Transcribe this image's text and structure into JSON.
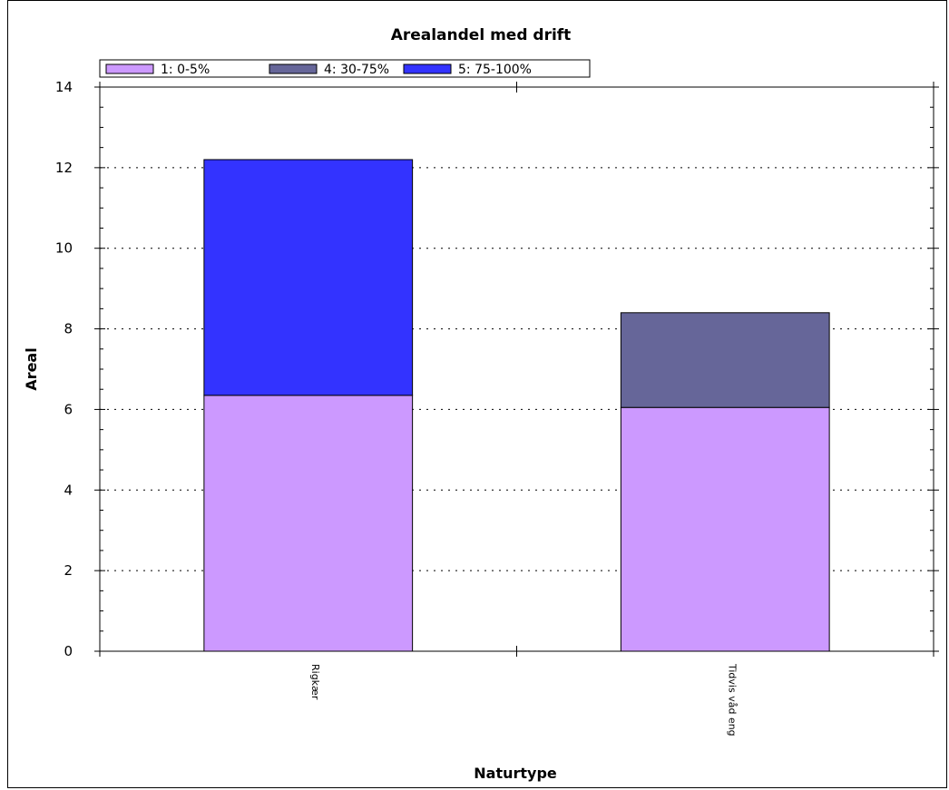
{
  "chart_data": {
    "type": "bar",
    "stacked": true,
    "title": "Arealandel med drift",
    "xlabel": "Naturtype",
    "ylabel": "Areal",
    "categories": [
      "Rigkær",
      "Tidvis våd eng"
    ],
    "series": [
      {
        "name": "1: 0-5%",
        "color": "#cc99ff",
        "values": [
          6.35,
          6.05
        ]
      },
      {
        "name": "4: 30-75%",
        "color": "#666699",
        "values": [
          0,
          2.35
        ]
      },
      {
        "name": "5: 75-100%",
        "color": "#3333ff",
        "values": [
          5.85,
          0
        ]
      }
    ],
    "ylim": [
      0,
      14
    ],
    "yticks": [
      "0",
      "2",
      "4",
      "6",
      "8",
      "10",
      "12",
      "14"
    ],
    "grid": true,
    "legend": "top-left"
  }
}
